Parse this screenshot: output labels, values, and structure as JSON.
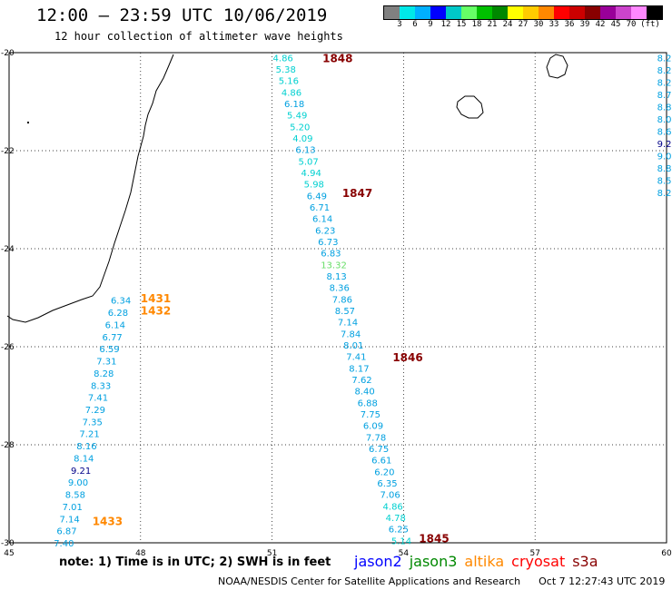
{
  "title": "12:00 – 23:59 UTC 10/06/2019",
  "subtitle": "12 hour collection of altimeter wave heights",
  "scale": {
    "colors": [
      "#808080",
      "#00e8e8",
      "#00b0ff",
      "#0000ff",
      "#00c8c8",
      "#66ff66",
      "#00c000",
      "#008800",
      "#ffff00",
      "#ffcc00",
      "#ff8800",
      "#ff0000",
      "#cc0000",
      "#880000",
      "#990099",
      "#cc44cc",
      "#ff88ff",
      "#000000"
    ],
    "labels": [
      "3",
      "6",
      "9",
      "12",
      "15",
      "18",
      "21",
      "24",
      "27",
      "30",
      "33",
      "36",
      "39",
      "42",
      "45",
      "70",
      "(ft)"
    ]
  },
  "axes": {
    "x_ticks": [
      "45",
      "48",
      "51",
      "54",
      "57",
      "60"
    ],
    "y_ticks": [
      "-20",
      "-22",
      "-24",
      "-26",
      "-28",
      "-30"
    ],
    "xlim": [
      45,
      60
    ],
    "ylim": [
      -30,
      -20
    ]
  },
  "colors": {
    "jason2": "#0000ff",
    "jason3": "#008800",
    "altika": "#ff8800",
    "cryosat": "#ff0000",
    "s3a": "#880000",
    "swh": "#00a0e0",
    "swh_light": "#00d0d0",
    "swh_green": "#66dd66",
    "swh_dark": "#000088"
  },
  "tracks": [
    {
      "satellite": "altika",
      "times": [
        {
          "label": "1431",
          "lon": 48.0,
          "lat": -25.0
        },
        {
          "label": "1432",
          "lon": 48.0,
          "lat": -25.25
        },
        {
          "label": "1433",
          "lon": 46.9,
          "lat": -29.55
        }
      ],
      "lon_start": 47.55,
      "lat_start": -25.05,
      "lon_end": 46.25,
      "lat_end": -30.0,
      "values": [
        "6.34",
        "6.28",
        "6.14",
        "6.77",
        "6.59",
        "7.31",
        "8.28",
        "8.33",
        "7.41",
        "7.29",
        "7.35",
        "7.21",
        "8.16",
        "8.14",
        "9.21",
        "9.00",
        "8.58",
        "7.01",
        "7.14",
        "6.87",
        "7.40"
      ]
    },
    {
      "satellite": "s3a",
      "times": [
        {
          "label": "1848",
          "lon": 52.15,
          "lat": -20.1
        },
        {
          "label": "1847",
          "lon": 52.6,
          "lat": -22.85
        },
        {
          "label": "1846",
          "lon": 53.75,
          "lat": -26.2
        },
        {
          "label": "1845",
          "lon": 54.35,
          "lat": -29.9
        }
      ],
      "lon_start": 51.25,
      "lat_start": -20.1,
      "lon_end": 53.95,
      "lat_end": -29.95,
      "values": [
        "4.86",
        "5.38",
        "5.16",
        "4.86",
        "6.18",
        "5.49",
        "5.20",
        "4.09",
        "6.13",
        "5.07",
        "4.94",
        "5.98",
        "6.49",
        "6.71",
        "6.14",
        "6.23",
        "6.73",
        "6.83",
        "13.32",
        "8.13",
        "8.36",
        "7.86",
        "8.57",
        "7.14",
        "7.84",
        "8.01",
        "7.41",
        "8.17",
        "7.62",
        "8.40",
        "6.88",
        "7.75",
        "6.09",
        "7.78",
        "6.75",
        "6.61",
        "6.20",
        "6.35",
        "7.06",
        "4.86",
        "4.78",
        "6.25",
        "5.14"
      ]
    },
    {
      "satellite": "s3a",
      "times": [],
      "lon_start": 59.95,
      "lat_start": -20.1,
      "lon_end": 59.95,
      "lat_end": -22.85,
      "values": [
        "8.2",
        "8.2",
        "8.2",
        "8.7",
        "8.8",
        "8.0",
        "8.6",
        "9.2",
        "9.0",
        "8.8",
        "8.5",
        "8.2"
      ]
    }
  ],
  "notes": "note:  1) Time is in UTC; 2) SWH is in feet",
  "legend": [
    {
      "name": "jason2",
      "color": "#0000ff"
    },
    {
      "name": "jason3",
      "color": "#008800"
    },
    {
      "name": "altika",
      "color": "#ff8800"
    },
    {
      "name": "cryosat",
      "color": "#ff0000"
    },
    {
      "name": "s3a",
      "color": "#880000"
    }
  ],
  "footer": {
    "credit": "NOAA/NESDIS Center for Satellite Applications and Research",
    "timestamp": "Oct  7 12:27:43 UTC 2019"
  }
}
